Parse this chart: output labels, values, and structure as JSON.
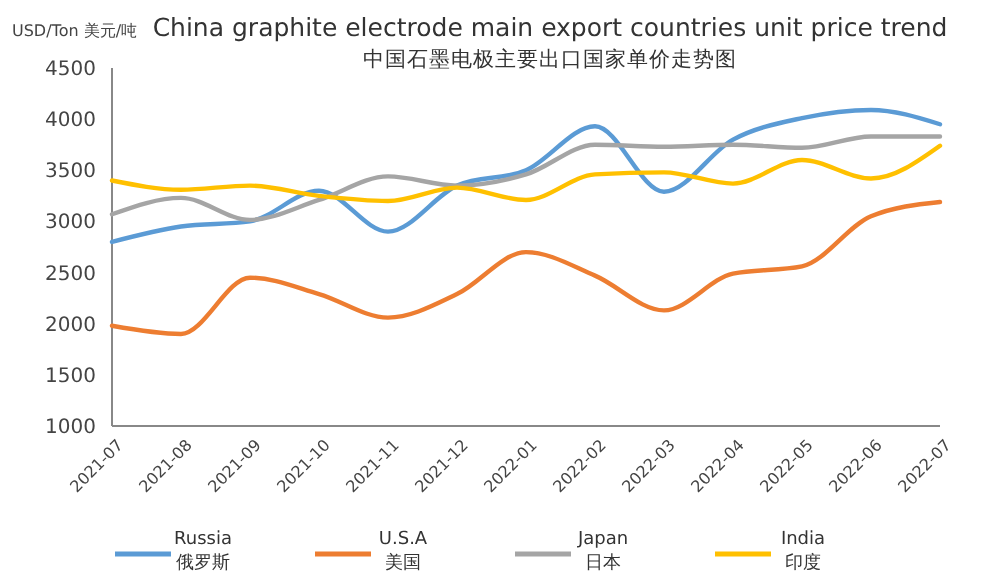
{
  "chart_data": {
    "type": "line",
    "title": "China graphite electrode main export countries unit price trend",
    "subtitle": "中国石墨电极主要出口国家单价走势图",
    "ylabel": "USD/Ton 美元/吨",
    "categories": [
      "2021-07",
      "2021-08",
      "2021-09",
      "2021-10",
      "2021-11",
      "2021-12",
      "2022-01",
      "2022-02",
      "2022-03",
      "2022-04",
      "2022-05",
      "2022-06",
      "2022-07"
    ],
    "ylim": [
      1000,
      4500
    ],
    "yticks": [
      1000,
      1500,
      2000,
      2500,
      3000,
      3500,
      4000,
      4500
    ],
    "grid": false,
    "legend": "bottom",
    "marker": "none",
    "series": [
      {
        "name": "Russia\n俄罗斯",
        "color": "#5b9bd5",
        "values": [
          2800,
          2950,
          3000,
          3300,
          2900,
          3350,
          3500,
          3930,
          3290,
          3800,
          4010,
          4090,
          3950
        ]
      },
      {
        "name": "U.S.A\n美国",
        "color": "#ed7d31",
        "values": [
          1980,
          1900,
          2450,
          2290,
          2060,
          2290,
          2700,
          2470,
          2130,
          2490,
          2560,
          3050,
          3190
        ]
      },
      {
        "name": "Japan\n日本",
        "color": "#a5a5a5",
        "values": [
          3070,
          3230,
          3015,
          3210,
          3440,
          3350,
          3460,
          3750,
          3730,
          3750,
          3720,
          3830,
          3830
        ]
      },
      {
        "name": "India\n印度",
        "color": "#ffc000",
        "values": [
          3400,
          3310,
          3350,
          3250,
          3200,
          3330,
          3210,
          3460,
          3480,
          3370,
          3600,
          3420,
          3740
        ]
      }
    ]
  }
}
